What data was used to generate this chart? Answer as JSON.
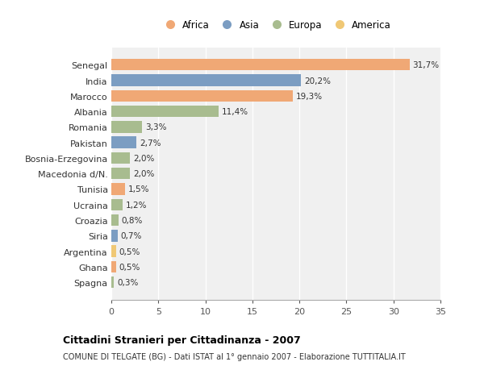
{
  "categories": [
    "Spagna",
    "Ghana",
    "Argentina",
    "Siria",
    "Croazia",
    "Ucraina",
    "Tunisia",
    "Macedonia d/N.",
    "Bosnia-Erzegovina",
    "Pakistan",
    "Romania",
    "Albania",
    "Marocco",
    "India",
    "Senegal"
  ],
  "values": [
    0.3,
    0.5,
    0.5,
    0.7,
    0.8,
    1.2,
    1.5,
    2.0,
    2.0,
    2.7,
    3.3,
    11.4,
    19.3,
    20.2,
    31.7
  ],
  "labels": [
    "0,3%",
    "0,5%",
    "0,5%",
    "0,7%",
    "0,8%",
    "1,2%",
    "1,5%",
    "2,0%",
    "2,0%",
    "2,7%",
    "3,3%",
    "11,4%",
    "19,3%",
    "20,2%",
    "31,7%"
  ],
  "continents": [
    "Europa",
    "Africa",
    "America",
    "Asia",
    "Europa",
    "Europa",
    "Africa",
    "Europa",
    "Europa",
    "Asia",
    "Europa",
    "Europa",
    "Africa",
    "Asia",
    "Africa"
  ],
  "continent_colors": {
    "Africa": "#F0A875",
    "Asia": "#7B9DC2",
    "Europa": "#A8BC8F",
    "America": "#F0C875"
  },
  "legend_order": [
    "Africa",
    "Asia",
    "Europa",
    "America"
  ],
  "title": "Cittadini Stranieri per Cittadinanza - 2007",
  "subtitle": "COMUNE DI TELGATE (BG) - Dati ISTAT al 1° gennaio 2007 - Elaborazione TUTTITALIA.IT",
  "xlim": [
    0,
    35
  ],
  "xticks": [
    0,
    5,
    10,
    15,
    20,
    25,
    30,
    35
  ],
  "bg_color": "#ffffff",
  "plot_bg_color": "#f0f0f0",
  "grid_color": "#ffffff",
  "bar_height": 0.75
}
